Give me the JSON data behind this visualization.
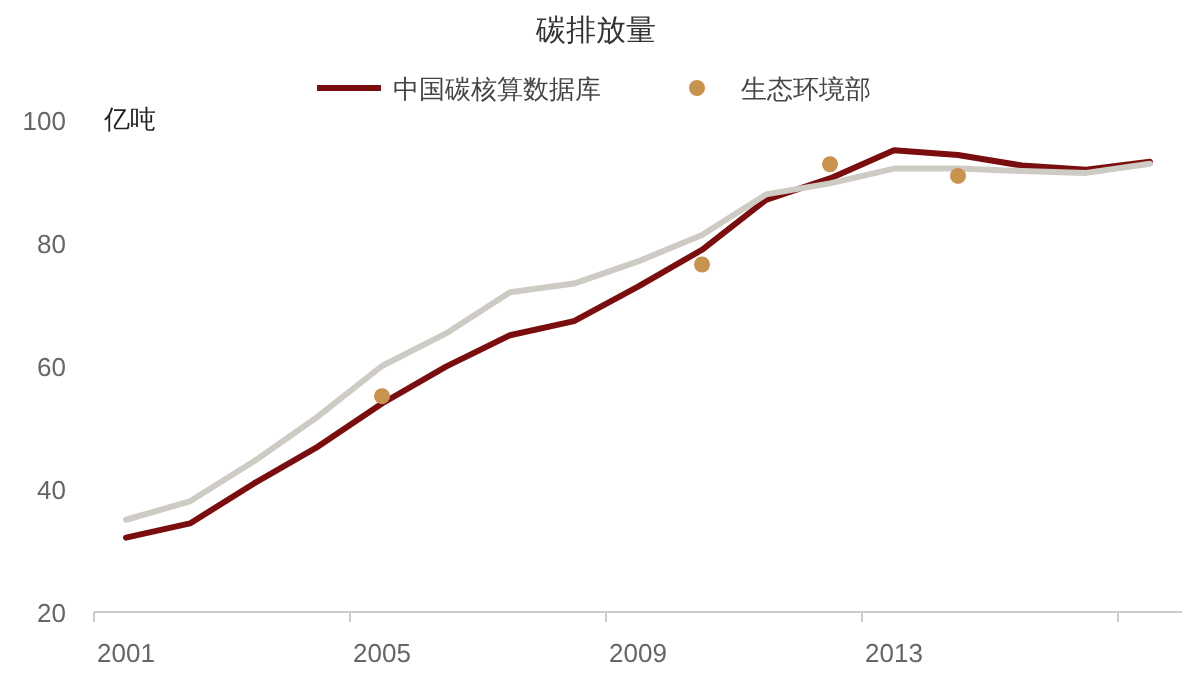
{
  "chart_data": {
    "type": "line",
    "title": "碳排放量",
    "ylabel": "亿吨",
    "categories": [
      "2001",
      null,
      null,
      null,
      "2005",
      null,
      null,
      null,
      "2009",
      null,
      null,
      null,
      "2013",
      null,
      null,
      null,
      null
    ],
    "series": [
      {
        "name": "中国碳核算数据库",
        "color": "#7a0e0e",
        "values": [
          32.1,
          34.4,
          40.9,
          46.9,
          53.9,
          59.9,
          65.0,
          67.3,
          72.9,
          78.9,
          87.0,
          90.5,
          95.1,
          94.3,
          92.6,
          91.9,
          93.2
        ]
      },
      {
        "color": "#cdcbc4",
        "values": [
          35.0,
          38.0,
          44.5,
          51.8,
          60.0,
          65.3,
          72.0,
          73.4,
          77.0,
          81.3,
          87.9,
          89.7,
          92.1,
          92.1,
          91.7,
          91.4,
          92.9
        ]
      },
      {
        "name": "生态环境部",
        "type": "scatter",
        "marker": "circle",
        "color": "#c8924f",
        "values": [
          null,
          null,
          null,
          null,
          55.1,
          null,
          null,
          null,
          null,
          76.5,
          null,
          92.8,
          null,
          90.9,
          null,
          null,
          null
        ]
      }
    ],
    "ylim": [
      20,
      100
    ],
    "yticks": [
      20,
      40,
      60,
      80,
      100
    ],
    "grid": false,
    "legend": "top",
    "marker": "none",
    "line_style": "solid"
  }
}
